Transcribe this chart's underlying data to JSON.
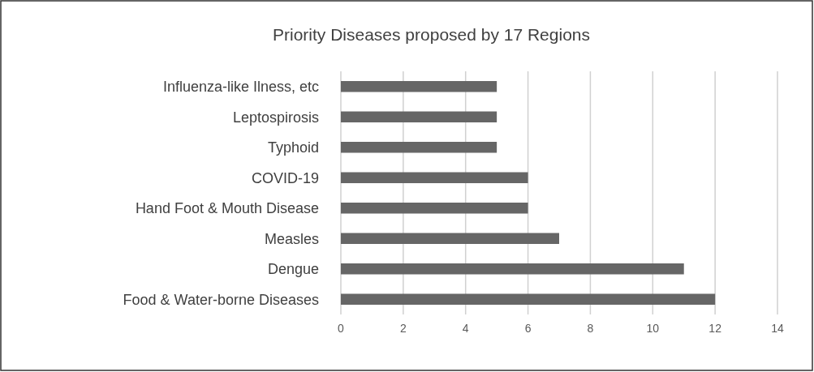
{
  "chart_data": {
    "type": "bar",
    "orientation": "horizontal",
    "title": "Priority Diseases proposed by 17 Regions",
    "categories": [
      "Influenza-like Ilness, etc",
      "Leptospirosis",
      "Typhoid",
      "COVID-19",
      "Hand Foot & Mouth Disease",
      "Measles",
      "Dengue",
      "Food & Water-borne Diseases"
    ],
    "values": [
      5,
      5,
      5,
      6,
      6,
      7,
      11,
      12
    ],
    "color": "#666666",
    "xlim": [
      0,
      14
    ],
    "xticks": [
      0,
      2,
      4,
      6,
      8,
      10,
      12,
      14
    ],
    "grid": "x"
  }
}
